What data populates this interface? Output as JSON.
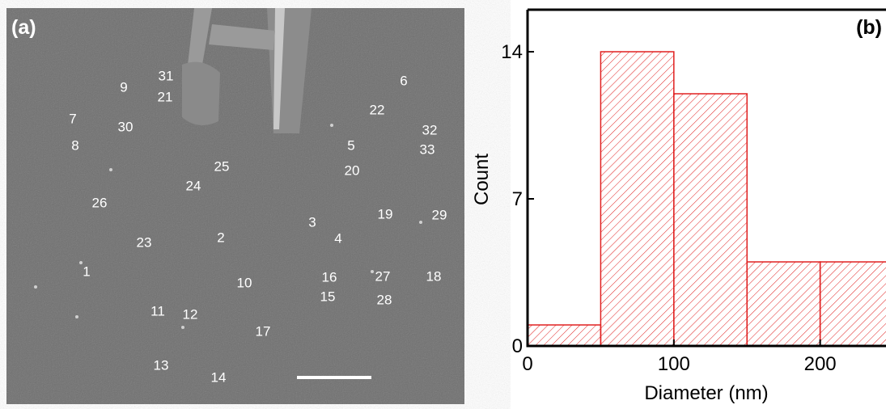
{
  "image_panel": {
    "panel_label": "(a)",
    "particle_labels": [
      "31",
      "9",
      "21",
      "6",
      "22",
      "7",
      "30",
      "32",
      "8",
      "5",
      "33",
      "25",
      "20",
      "24",
      "26",
      "19",
      "29",
      "3",
      "2",
      "4",
      "23",
      "1",
      "16",
      "27",
      "18",
      "10",
      "15",
      "28",
      "11",
      "12",
      "17",
      "13",
      "14"
    ]
  },
  "chart_data": {
    "type": "histogram",
    "panel_label": "(b)",
    "x_label": "Diameter (nm)",
    "y_label": "Count",
    "bins": [
      0,
      50,
      100,
      150,
      200,
      250
    ],
    "values": [
      1,
      14,
      12,
      4,
      4
    ],
    "color": "#e02020",
    "xlim": [
      0,
      245
    ],
    "ylim": [
      0,
      16
    ],
    "xticks": [
      0,
      100,
      200
    ],
    "yticks": [
      0,
      7,
      14
    ]
  }
}
